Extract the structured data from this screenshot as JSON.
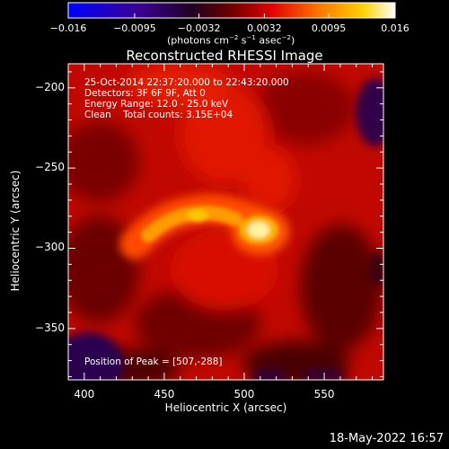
{
  "chart_data": {
    "type": "heatmap",
    "title": "Reconstructed RHESSI Image",
    "xlabel": "Heliocentric X (arcsec)",
    "ylabel": "Heliocentric Y (arcsec)",
    "xlim": [
      390,
      587
    ],
    "ylim": [
      -382,
      -185
    ],
    "x_ticks": [
      "400",
      "450",
      "500",
      "550"
    ],
    "x_tick_values": [
      400,
      450,
      500,
      550
    ],
    "y_ticks": [
      "−200",
      "−250",
      "−300",
      "−350"
    ],
    "y_tick_values": [
      -200,
      -250,
      -300,
      -350
    ],
    "colorbar": {
      "ticks": [
        "−0.016",
        "−0.0095",
        "−0.0032",
        "0.0032",
        "0.0095",
        "0.016"
      ],
      "tick_values": [
        -0.016,
        -0.0095,
        -0.0032,
        0.0032,
        0.0095,
        0.016
      ],
      "range": [
        -0.016,
        0.016
      ],
      "units_prefix": "(photons cm",
      "units_exp1": "−2",
      "units_mid": " s",
      "units_exp2": "−1",
      "units_mid2": " asec",
      "units_exp3": "−2",
      "units_suffix": ")",
      "colormap": [
        "#0000ff",
        "#3e0080",
        "#000000",
        "#800000",
        "#ff2000",
        "#ff8800",
        "#ffd000",
        "#ffffff"
      ]
    },
    "annotations": {
      "time": "25-Oct-2014 22:37:20.000 to 22:43:20.000",
      "detectors": "Detectors: 3F 6F 9F, Att 0",
      "energy": "Energy Range: 12.0 - 25.0 keV",
      "clean": "Clean    Total counts: 3.15E+04",
      "peak": "Position of Peak = [507,-288]"
    },
    "peak": [
      507,
      -288
    ],
    "grid": false,
    "legend": "colorbar-top"
  },
  "footer": {
    "timestamp": "18-May-2022 16:57"
  }
}
